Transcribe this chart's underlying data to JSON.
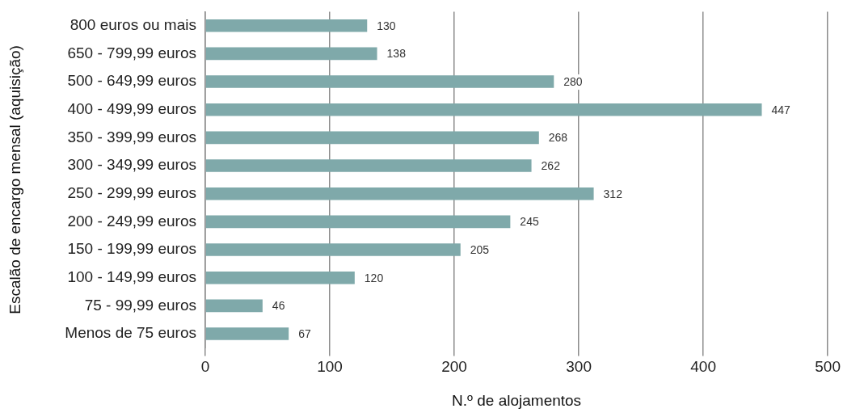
{
  "chart_data": {
    "type": "bar",
    "orientation": "horizontal",
    "xlabel": "N.º de alojamentos",
    "ylabel": "Escalão de encargo mensal (aquisição)",
    "categories": [
      "800 euros ou mais",
      "650 - 799,99 euros",
      "500 - 649,99 euros",
      "400 - 499,99 euros",
      "350 - 399,99 euros",
      "300 - 349,99 euros",
      "250 - 299,99 euros",
      "200 - 249,99 euros",
      "150 - 199,99 euros",
      "100 - 149,99 euros",
      "75 - 99,99 euros",
      "Menos de 75 euros"
    ],
    "values": [
      130,
      138,
      280,
      447,
      268,
      262,
      312,
      245,
      205,
      120,
      46,
      67
    ],
    "color": "#7fa9aa",
    "xlim": [
      0,
      500
    ],
    "xticks": [
      0,
      100,
      200,
      300,
      400,
      500
    ],
    "grid": "x",
    "data_labels": true,
    "legend": false
  }
}
